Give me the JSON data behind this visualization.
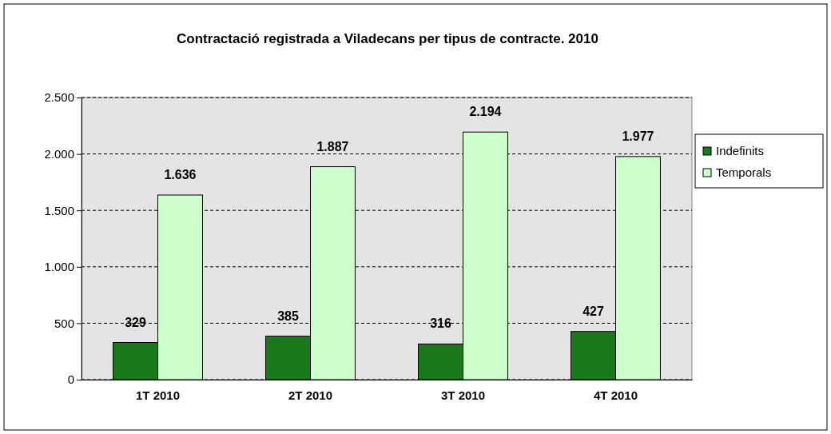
{
  "chart_data": {
    "type": "bar",
    "title": "Contractació registrada a Viladecans per tipus de contracte. 2010",
    "categories": [
      "1T 2010",
      "2T 2010",
      "3T 2010",
      "4T 2010"
    ],
    "series": [
      {
        "name": "Indefinits",
        "color": "#1a7a1a",
        "values": [
          329,
          385,
          316,
          427
        ],
        "value_labels": [
          "329",
          "385",
          "316",
          "427"
        ]
      },
      {
        "name": "Temporals",
        "color": "#ccffcc",
        "values": [
          1636,
          1887,
          2194,
          1977
        ],
        "value_labels": [
          "1.636",
          "1.887",
          "2.194",
          "1.977"
        ]
      }
    ],
    "ylim": [
      0,
      2500
    ],
    "yticks": [
      0,
      500,
      {
        "value": 1000,
        "label": "1.000"
      },
      {
        "value": 1500,
        "label": "1.500"
      },
      {
        "value": 2000,
        "label": "2.000"
      },
      {
        "value": 2500,
        "label": "2.500"
      }
    ],
    "grid": "y",
    "legend": "right"
  }
}
